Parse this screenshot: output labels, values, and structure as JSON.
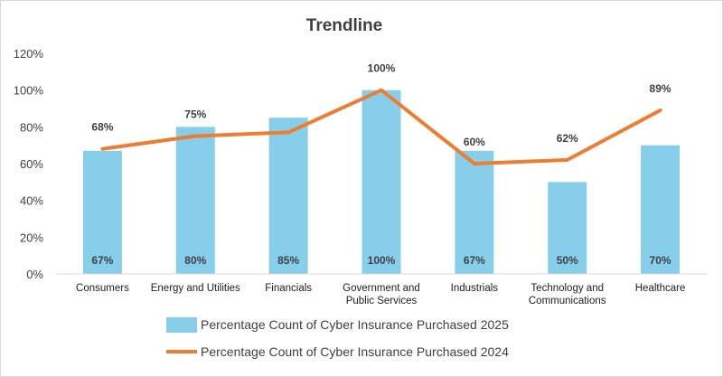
{
  "chart_data": {
    "type": "bar",
    "title": "Trendline",
    "xlabel": "",
    "ylabel": "",
    "ylim": [
      0,
      120
    ],
    "y_ticks": [
      "0%",
      "20%",
      "40%",
      "60%",
      "80%",
      "100%",
      "120%"
    ],
    "y_tick_values": [
      0,
      20,
      40,
      60,
      80,
      100,
      120
    ],
    "grid": false,
    "legend_position": "bottom",
    "categories": [
      [
        "Consumers"
      ],
      [
        "Energy and Utilities"
      ],
      [
        "Financials"
      ],
      [
        "Government and",
        "Public Services"
      ],
      [
        "Industrials"
      ],
      [
        "Technology and",
        "Communications"
      ],
      [
        "Healthcare"
      ]
    ],
    "series": [
      {
        "name": "Percentage Count of Cyber Insurance Purchased 2025",
        "type": "bar",
        "color": "#87CEEB",
        "values": [
          67,
          80,
          85,
          100,
          67,
          50,
          70
        ],
        "labels": [
          "67%",
          "80%",
          "85%",
          "100%",
          "67%",
          "50%",
          "70%"
        ]
      },
      {
        "name": "Percentage Count of Cyber Insurance Purchased 2024",
        "type": "line",
        "color": "#ED7D31",
        "values": [
          68,
          75,
          77,
          100,
          60,
          62,
          89
        ],
        "labels": [
          "68%",
          "75%",
          "",
          "100%",
          "60%",
          "62%",
          "89%"
        ]
      }
    ]
  }
}
